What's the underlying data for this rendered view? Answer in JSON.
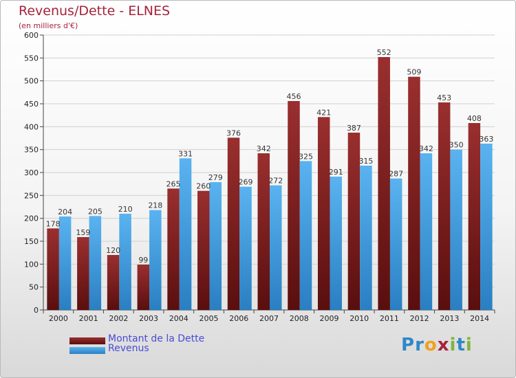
{
  "title": "Revenus/Dette - ELNES",
  "subtitle": "(en milliers d'€)",
  "brand": {
    "letters": [
      "P",
      "r",
      "o",
      "x",
      "i",
      "t",
      "i"
    ],
    "colors": [
      "#2f87c8",
      "#2f87c8",
      "#f0a020",
      "#a5223b",
      "#7cb63b",
      "#2f87c8",
      "#7cb63b"
    ]
  },
  "legend": [
    {
      "label": "Montant de la Dette",
      "color": "#7a1a1a"
    },
    {
      "label": "Revenus",
      "color": "#3a9be0"
    }
  ],
  "chart_data": {
    "type": "bar",
    "title": "Revenus/Dette - ELNES",
    "subtitle": "(en milliers d'€)",
    "categories": [
      "2000",
      "2001",
      "2002",
      "2003",
      "2004",
      "2005",
      "2006",
      "2007",
      "2008",
      "2009",
      "2010",
      "2011",
      "2012",
      "2013",
      "2014"
    ],
    "series": [
      {
        "name": "Montant de la Dette",
        "color": "#7a1a1a",
        "values": [
          178,
          159,
          120,
          99,
          265,
          260,
          376,
          342,
          456,
          421,
          387,
          552,
          509,
          453,
          408
        ]
      },
      {
        "name": "Revenus",
        "color": "#3a9be0",
        "values": [
          204,
          205,
          210,
          218,
          331,
          279,
          269,
          272,
          325,
          291,
          315,
          287,
          342,
          350,
          363
        ]
      }
    ],
    "yticks": [
      0,
      50,
      100,
      150,
      200,
      250,
      300,
      350,
      400,
      450,
      500,
      550,
      600
    ],
    "ylim": [
      0,
      600
    ],
    "xlabel": "",
    "ylabel": "",
    "grid": true,
    "legend_position": "bottom-left"
  }
}
